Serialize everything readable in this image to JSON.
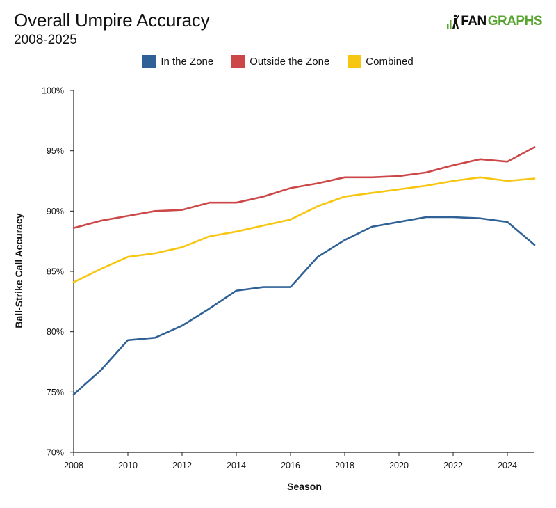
{
  "header": {
    "title": "Overall Umpire Accuracy",
    "subtitle": "2008-2025",
    "logo_text_fan": "FAN",
    "logo_text_graphs": "GRAPHS"
  },
  "colors": {
    "in_zone": "#2f6197",
    "outside_zone": "#cc4747",
    "combined": "#f7c611",
    "logo_green": "#5aa532",
    "axis": "#222222"
  },
  "chart_data": {
    "type": "line",
    "title": "Overall Umpire Accuracy",
    "subtitle": "2008-2025",
    "xlabel": "Season",
    "ylabel": "Ball-Strike Call Accuracy",
    "xlim": [
      2008,
      2025
    ],
    "ylim": [
      70,
      100
    ],
    "x_ticks": [
      2008,
      2010,
      2012,
      2014,
      2016,
      2018,
      2020,
      2022,
      2024
    ],
    "x_tick_labels": [
      "2008",
      "2010",
      "2012",
      "2014",
      "2016",
      "2018",
      "2020",
      "2022",
      "2024"
    ],
    "y_ticks": [
      70,
      75,
      80,
      85,
      90,
      95,
      100
    ],
    "y_tick_labels": [
      "70%",
      "75%",
      "80%",
      "85%",
      "90%",
      "95%",
      "100%"
    ],
    "grid": false,
    "legend_position": "top-center",
    "x": [
      2008,
      2009,
      2010,
      2011,
      2012,
      2013,
      2014,
      2015,
      2016,
      2017,
      2018,
      2019,
      2020,
      2021,
      2022,
      2023,
      2024,
      2025
    ],
    "series": [
      {
        "name": "In the Zone",
        "color": "#2f6197",
        "values": [
          74.8,
          76.8,
          79.3,
          79.5,
          80.5,
          81.9,
          83.4,
          83.7,
          83.7,
          86.2,
          87.6,
          88.7,
          89.1,
          89.5,
          89.5,
          89.4,
          89.1,
          87.2
        ]
      },
      {
        "name": "Outside the Zone",
        "color": "#cc4747",
        "values": [
          88.6,
          89.2,
          89.6,
          90.0,
          90.1,
          90.7,
          90.7,
          91.2,
          91.9,
          92.3,
          92.8,
          92.8,
          92.9,
          93.2,
          93.8,
          94.3,
          94.1,
          95.3
        ]
      },
      {
        "name": "Combined",
        "color": "#f7c611",
        "values": [
          84.1,
          85.2,
          86.2,
          86.5,
          87.0,
          87.9,
          88.3,
          88.8,
          89.3,
          90.4,
          91.2,
          91.5,
          91.8,
          92.1,
          92.5,
          92.8,
          92.5,
          92.7
        ]
      }
    ]
  }
}
